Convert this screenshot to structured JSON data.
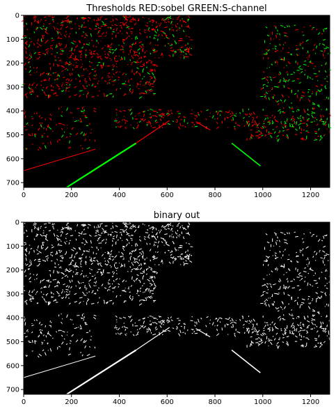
{
  "chart_data": [
    {
      "type": "image",
      "title": "Thresholds RED:sobel GREEN:S-channel",
      "xlim": [
        0,
        1280
      ],
      "ylim": [
        720,
        0
      ],
      "x_ticks": [
        0,
        200,
        400,
        600,
        800,
        1000,
        1200
      ],
      "y_ticks": [
        0,
        100,
        200,
        300,
        400,
        500,
        600,
        700
      ],
      "background_color": "#000000",
      "channel_colors": {
        "sobel": "#ff0000",
        "s_channel": "#00ff00"
      }
    },
    {
      "type": "image",
      "title": "binary out",
      "xlim": [
        0,
        1280
      ],
      "ylim": [
        720,
        0
      ],
      "x_ticks": [
        0,
        200,
        400,
        600,
        800,
        1000,
        1200
      ],
      "y_ticks": [
        0,
        100,
        200,
        300,
        400,
        500,
        600,
        700
      ],
      "background_color": "#000000",
      "pixel_color": "#ffffff"
    }
  ]
}
